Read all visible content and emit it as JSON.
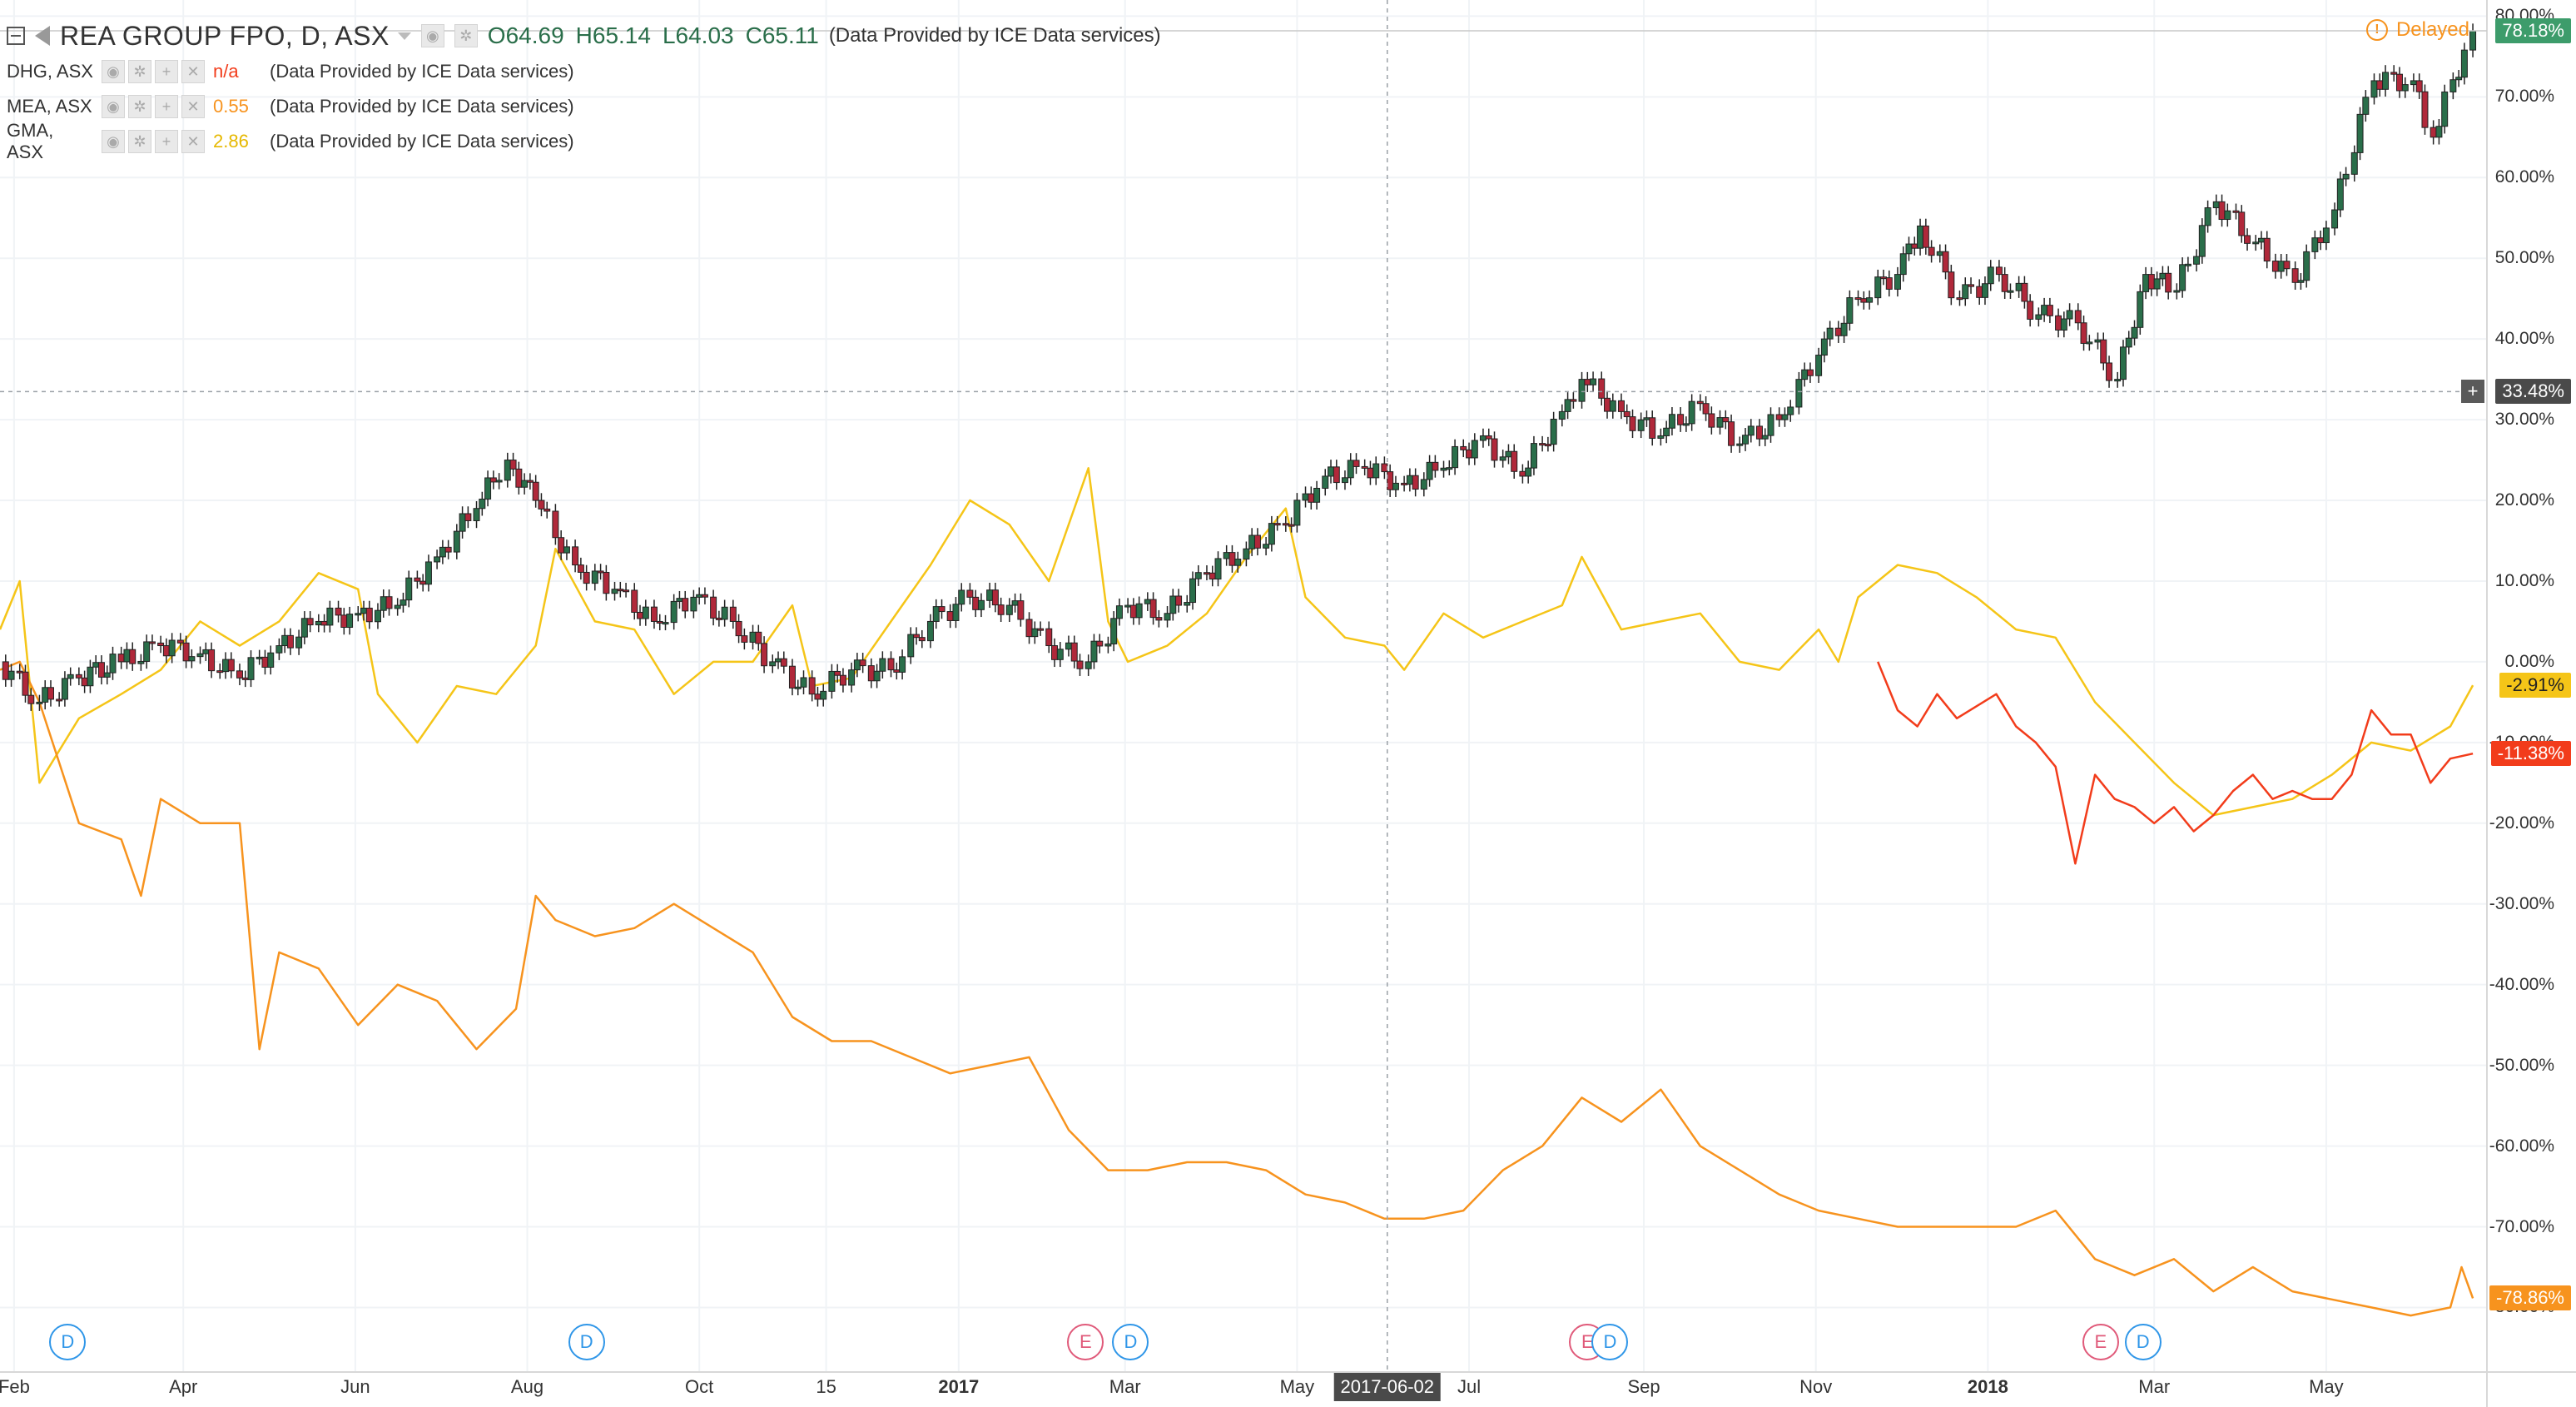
{
  "legend": {
    "main": {
      "symbol": "REA GROUP FPO, D, ASX",
      "open": "O64.69",
      "high": "H65.14",
      "low": "L64.03",
      "close": "C65.11",
      "provider": "(Data Provided by ICE Data services)"
    },
    "compare": [
      {
        "symbol": "DHG, ASX",
        "value": "n/a",
        "provider": "(Data Provided by ICE Data services)",
        "color": "#f23c1b"
      },
      {
        "symbol": "MEA, ASX",
        "value": "0.55",
        "provider": "(Data Provided by ICE Data services)",
        "color": "#f7931e"
      },
      {
        "symbol": "GMA, ASX",
        "value": "2.86",
        "provider": "(Data Provided by ICE Data services)",
        "color": "#f5c518"
      }
    ]
  },
  "status": {
    "delayed": "Delayed",
    "icon": "warning-circle-icon"
  },
  "crosshair": {
    "date": "2017-06-02",
    "value_label": "33.48%"
  },
  "chart_data": {
    "type": "line",
    "y_unit": "percent change",
    "ylim": [
      -88,
      82
    ],
    "y_ticks": [
      "80.00%",
      "70.00%",
      "60.00%",
      "50.00%",
      "40.00%",
      "30.00%",
      "20.00%",
      "10.00%",
      "0.00%",
      "-10.00%",
      "-20.00%",
      "-30.00%",
      "-40.00%",
      "-50.00%",
      "-60.00%",
      "-70.00%",
      "-80.00%"
    ],
    "x_ticks": [
      {
        "label": "Feb",
        "date": "2016-02-01",
        "bold": false
      },
      {
        "label": "Apr",
        "date": "2016-04-01",
        "bold": false
      },
      {
        "label": "Jun",
        "date": "2016-06-01",
        "bold": false
      },
      {
        "label": "Aug",
        "date": "2016-08-01",
        "bold": false
      },
      {
        "label": "Oct",
        "date": "2016-10-01",
        "bold": false
      },
      {
        "label": "15",
        "date": "2016-11-15",
        "bold": false
      },
      {
        "label": "2017",
        "date": "2017-01-01",
        "bold": true
      },
      {
        "label": "Mar",
        "date": "2017-03-01",
        "bold": false
      },
      {
        "label": "May",
        "date": "2017-05-01",
        "bold": false
      },
      {
        "label": "Jul",
        "date": "2017-07-01",
        "bold": false
      },
      {
        "label": "Sep",
        "date": "2017-09-01",
        "bold": false
      },
      {
        "label": "Nov",
        "date": "2017-11-01",
        "bold": false
      },
      {
        "label": "2018",
        "date": "2018-01-01",
        "bold": true
      },
      {
        "label": "Mar",
        "date": "2018-03-01",
        "bold": false
      },
      {
        "label": "May",
        "date": "2018-05-01",
        "bold": false
      }
    ],
    "x_range": [
      "2016-01-27",
      "2018-06-27"
    ],
    "series": [
      {
        "name": "REA GROUP FPO, D, ASX",
        "style": "candles",
        "color_up": "#2a6e4a",
        "color_down": "#b0283a",
        "last_label": "78.18%",
        "points": [
          [
            "2016-01-27",
            0
          ],
          [
            "2016-02-10",
            -5
          ],
          [
            "2016-02-24",
            -2
          ],
          [
            "2016-03-10",
            0
          ],
          [
            "2016-03-24",
            2
          ],
          [
            "2016-04-07",
            1
          ],
          [
            "2016-04-21",
            -2
          ],
          [
            "2016-05-05",
            2
          ],
          [
            "2016-05-19",
            5
          ],
          [
            "2016-06-02",
            6
          ],
          [
            "2016-06-16",
            7
          ],
          [
            "2016-06-30",
            13
          ],
          [
            "2016-07-14",
            19
          ],
          [
            "2016-07-25",
            25
          ],
          [
            "2016-08-04",
            20
          ],
          [
            "2016-08-18",
            12
          ],
          [
            "2016-09-01",
            9
          ],
          [
            "2016-09-15",
            5
          ],
          [
            "2016-09-29",
            8
          ],
          [
            "2016-10-13",
            5
          ],
          [
            "2016-10-27",
            0
          ],
          [
            "2016-11-10",
            -4
          ],
          [
            "2016-11-24",
            -1
          ],
          [
            "2016-12-08",
            -1
          ],
          [
            "2016-12-22",
            5
          ],
          [
            "2017-01-05",
            8
          ],
          [
            "2017-01-19",
            7
          ],
          [
            "2017-02-02",
            2
          ],
          [
            "2017-02-16",
            0
          ],
          [
            "2017-03-02",
            7
          ],
          [
            "2017-03-16",
            6
          ],
          [
            "2017-03-30",
            11
          ],
          [
            "2017-04-13",
            14
          ],
          [
            "2017-04-27",
            17
          ],
          [
            "2017-05-11",
            23
          ],
          [
            "2017-05-25",
            24
          ],
          [
            "2017-06-08",
            22
          ],
          [
            "2017-06-22",
            24
          ],
          [
            "2017-07-06",
            28
          ],
          [
            "2017-07-20",
            23
          ],
          [
            "2017-08-03",
            31
          ],
          [
            "2017-08-10",
            35
          ],
          [
            "2017-08-24",
            31
          ],
          [
            "2017-09-07",
            28
          ],
          [
            "2017-09-21",
            32
          ],
          [
            "2017-10-05",
            27
          ],
          [
            "2017-10-19",
            30
          ],
          [
            "2017-11-02",
            38
          ],
          [
            "2017-11-16",
            45
          ],
          [
            "2017-11-30",
            48
          ],
          [
            "2017-12-08",
            54
          ],
          [
            "2017-12-22",
            45
          ],
          [
            "2018-01-05",
            48
          ],
          [
            "2018-01-19",
            43
          ],
          [
            "2018-02-02",
            42
          ],
          [
            "2018-02-16",
            35
          ],
          [
            "2018-02-26",
            48
          ],
          [
            "2018-03-09",
            46
          ],
          [
            "2018-03-23",
            57
          ],
          [
            "2018-04-06",
            52
          ],
          [
            "2018-04-20",
            47
          ],
          [
            "2018-05-04",
            56
          ],
          [
            "2018-05-18",
            72
          ],
          [
            "2018-06-01",
            72
          ],
          [
            "2018-06-08",
            65
          ],
          [
            "2018-06-22",
            78.18
          ]
        ]
      },
      {
        "name": "GMA, ASX",
        "style": "line",
        "color": "#f5c518",
        "last_label": "-2.91%",
        "points": [
          [
            "2016-01-27",
            4
          ],
          [
            "2016-02-03",
            10
          ],
          [
            "2016-02-10",
            -15
          ],
          [
            "2016-02-24",
            -7
          ],
          [
            "2016-03-10",
            -4
          ],
          [
            "2016-03-24",
            -1
          ],
          [
            "2016-04-07",
            5
          ],
          [
            "2016-04-21",
            2
          ],
          [
            "2016-05-05",
            5
          ],
          [
            "2016-05-19",
            11
          ],
          [
            "2016-06-02",
            9
          ],
          [
            "2016-06-09",
            -4
          ],
          [
            "2016-06-23",
            -10
          ],
          [
            "2016-07-07",
            -3
          ],
          [
            "2016-07-21",
            -4
          ],
          [
            "2016-08-04",
            2
          ],
          [
            "2016-08-11",
            14
          ],
          [
            "2016-08-25",
            5
          ],
          [
            "2016-09-08",
            4
          ],
          [
            "2016-09-22",
            -4
          ],
          [
            "2016-10-06",
            0
          ],
          [
            "2016-10-20",
            0
          ],
          [
            "2016-11-03",
            7
          ],
          [
            "2016-11-10",
            -3
          ],
          [
            "2016-11-24",
            -2
          ],
          [
            "2016-12-08",
            5
          ],
          [
            "2016-12-22",
            12
          ],
          [
            "2017-01-05",
            20
          ],
          [
            "2017-01-19",
            17
          ],
          [
            "2017-02-02",
            10
          ],
          [
            "2017-02-16",
            24
          ],
          [
            "2017-02-23",
            5
          ],
          [
            "2017-03-02",
            0
          ],
          [
            "2017-03-16",
            2
          ],
          [
            "2017-03-30",
            6
          ],
          [
            "2017-04-13",
            13
          ],
          [
            "2017-04-27",
            19
          ],
          [
            "2017-05-04",
            8
          ],
          [
            "2017-05-18",
            3
          ],
          [
            "2017-06-01",
            2
          ],
          [
            "2017-06-08",
            -1
          ],
          [
            "2017-06-22",
            6
          ],
          [
            "2017-07-06",
            3
          ],
          [
            "2017-07-20",
            5
          ],
          [
            "2017-08-03",
            7
          ],
          [
            "2017-08-10",
            13
          ],
          [
            "2017-08-24",
            4
          ],
          [
            "2017-09-07",
            5
          ],
          [
            "2017-09-21",
            6
          ],
          [
            "2017-10-05",
            0
          ],
          [
            "2017-10-19",
            -1
          ],
          [
            "2017-11-02",
            4
          ],
          [
            "2017-11-09",
            0
          ],
          [
            "2017-11-16",
            8
          ],
          [
            "2017-11-30",
            12
          ],
          [
            "2017-12-14",
            11
          ],
          [
            "2017-12-28",
            8
          ],
          [
            "2018-01-11",
            4
          ],
          [
            "2018-01-25",
            3
          ],
          [
            "2018-02-08",
            -5
          ],
          [
            "2018-02-22",
            -10
          ],
          [
            "2018-03-08",
            -15
          ],
          [
            "2018-03-22",
            -19
          ],
          [
            "2018-04-05",
            -18
          ],
          [
            "2018-04-19",
            -17
          ],
          [
            "2018-05-03",
            -14
          ],
          [
            "2018-05-17",
            -10
          ],
          [
            "2018-05-31",
            -11
          ],
          [
            "2018-06-14",
            -8
          ],
          [
            "2018-06-22",
            -2.91
          ]
        ]
      },
      {
        "name": "DHG, ASX",
        "style": "line",
        "color": "#f23c1b",
        "last_label": "-11.38%",
        "points": [
          [
            "2017-11-23",
            0
          ],
          [
            "2017-11-30",
            -6
          ],
          [
            "2017-12-07",
            -8
          ],
          [
            "2017-12-14",
            -4
          ],
          [
            "2017-12-21",
            -7
          ],
          [
            "2018-01-04",
            -4
          ],
          [
            "2018-01-11",
            -8
          ],
          [
            "2018-01-18",
            -10
          ],
          [
            "2018-01-25",
            -13
          ],
          [
            "2018-02-01",
            -25
          ],
          [
            "2018-02-08",
            -14
          ],
          [
            "2018-02-15",
            -17
          ],
          [
            "2018-02-22",
            -18
          ],
          [
            "2018-03-01",
            -20
          ],
          [
            "2018-03-08",
            -18
          ],
          [
            "2018-03-15",
            -21
          ],
          [
            "2018-03-22",
            -19
          ],
          [
            "2018-03-29",
            -16
          ],
          [
            "2018-04-05",
            -14
          ],
          [
            "2018-04-12",
            -17
          ],
          [
            "2018-04-19",
            -16
          ],
          [
            "2018-04-26",
            -17
          ],
          [
            "2018-05-03",
            -17
          ],
          [
            "2018-05-10",
            -14
          ],
          [
            "2018-05-17",
            -6
          ],
          [
            "2018-05-24",
            -9
          ],
          [
            "2018-05-31",
            -9
          ],
          [
            "2018-06-07",
            -15
          ],
          [
            "2018-06-14",
            -12
          ],
          [
            "2018-06-22",
            -11.38
          ]
        ]
      },
      {
        "name": "MEA, ASX",
        "style": "line",
        "color": "#f7931e",
        "last_label": "-78.86%",
        "points": [
          [
            "2016-01-27",
            -1
          ],
          [
            "2016-02-03",
            0
          ],
          [
            "2016-02-10",
            -5
          ],
          [
            "2016-02-24",
            -20
          ],
          [
            "2016-03-10",
            -22
          ],
          [
            "2016-03-17",
            -29
          ],
          [
            "2016-03-24",
            -17
          ],
          [
            "2016-04-07",
            -20
          ],
          [
            "2016-04-21",
            -20
          ],
          [
            "2016-04-28",
            -48
          ],
          [
            "2016-05-05",
            -36
          ],
          [
            "2016-05-19",
            -38
          ],
          [
            "2016-06-02",
            -45
          ],
          [
            "2016-06-16",
            -40
          ],
          [
            "2016-06-30",
            -42
          ],
          [
            "2016-07-14",
            -48
          ],
          [
            "2016-07-28",
            -43
          ],
          [
            "2016-08-04",
            -29
          ],
          [
            "2016-08-11",
            -32
          ],
          [
            "2016-08-25",
            -34
          ],
          [
            "2016-09-08",
            -33
          ],
          [
            "2016-09-22",
            -30
          ],
          [
            "2016-10-06",
            -33
          ],
          [
            "2016-10-20",
            -36
          ],
          [
            "2016-11-03",
            -44
          ],
          [
            "2016-11-17",
            -47
          ],
          [
            "2016-12-01",
            -47
          ],
          [
            "2016-12-15",
            -49
          ],
          [
            "2016-12-29",
            -51
          ],
          [
            "2017-01-12",
            -50
          ],
          [
            "2017-01-26",
            -49
          ],
          [
            "2017-02-09",
            -58
          ],
          [
            "2017-02-23",
            -63
          ],
          [
            "2017-03-09",
            -63
          ],
          [
            "2017-03-23",
            -62
          ],
          [
            "2017-04-06",
            -62
          ],
          [
            "2017-04-20",
            -63
          ],
          [
            "2017-05-04",
            -66
          ],
          [
            "2017-05-18",
            -67
          ],
          [
            "2017-06-01",
            -69
          ],
          [
            "2017-06-15",
            -69
          ],
          [
            "2017-06-29",
            -68
          ],
          [
            "2017-07-13",
            -63
          ],
          [
            "2017-07-27",
            -60
          ],
          [
            "2017-08-10",
            -54
          ],
          [
            "2017-08-24",
            -57
          ],
          [
            "2017-09-07",
            -53
          ],
          [
            "2017-09-21",
            -60
          ],
          [
            "2017-10-05",
            -63
          ],
          [
            "2017-10-19",
            -66
          ],
          [
            "2017-11-02",
            -68
          ],
          [
            "2017-11-16",
            -69
          ],
          [
            "2017-11-30",
            -70
          ],
          [
            "2017-12-14",
            -70
          ],
          [
            "2017-12-28",
            -70
          ],
          [
            "2018-01-11",
            -70
          ],
          [
            "2018-01-25",
            -68
          ],
          [
            "2018-02-08",
            -74
          ],
          [
            "2018-02-22",
            -76
          ],
          [
            "2018-03-08",
            -74
          ],
          [
            "2018-03-22",
            -78
          ],
          [
            "2018-04-05",
            -75
          ],
          [
            "2018-04-19",
            -78
          ],
          [
            "2018-05-03",
            -79
          ],
          [
            "2018-05-17",
            -80
          ],
          [
            "2018-05-31",
            -81
          ],
          [
            "2018-06-14",
            -80
          ],
          [
            "2018-06-18",
            -75
          ],
          [
            "2018-06-22",
            -78.86
          ]
        ]
      }
    ],
    "events": [
      {
        "type": "D",
        "date": "2016-02-20"
      },
      {
        "type": "D",
        "date": "2016-08-22"
      },
      {
        "type": "E",
        "date": "2017-02-15"
      },
      {
        "type": "D",
        "date": "2017-03-03"
      },
      {
        "type": "E",
        "date": "2017-08-12"
      },
      {
        "type": "D",
        "date": "2017-08-20"
      },
      {
        "type": "E",
        "date": "2018-02-10"
      },
      {
        "type": "D",
        "date": "2018-02-25"
      }
    ],
    "grid": true,
    "legend_position": "top-left"
  }
}
